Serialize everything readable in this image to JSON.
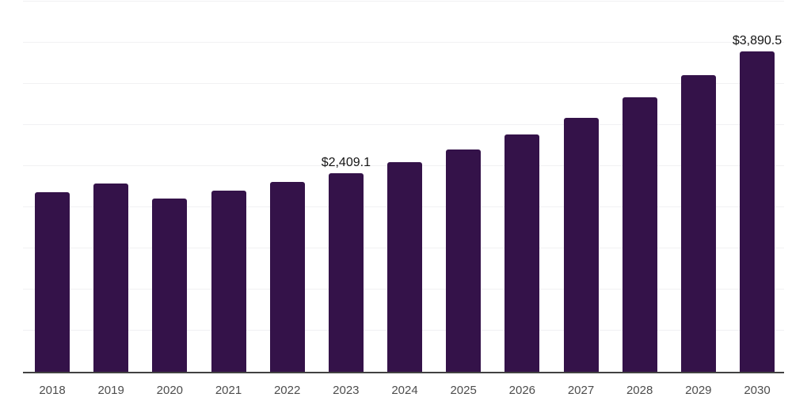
{
  "chart_data": {
    "type": "bar",
    "title": "",
    "xlabel": "",
    "ylabel": "",
    "categories": [
      "2018",
      "2019",
      "2020",
      "2021",
      "2022",
      "2023",
      "2024",
      "2025",
      "2026",
      "2027",
      "2028",
      "2029",
      "2030"
    ],
    "values": [
      2180,
      2290,
      2110,
      2200,
      2310,
      2409.1,
      2550,
      2700,
      2880,
      3090,
      3340,
      3610,
      3890.5
    ],
    "bar_labels": {
      "2023": "$2,409.1",
      "2030": "$3,890.5"
    },
    "ylim": [
      0,
      4500
    ],
    "gridline_interval": 500,
    "grid": "horizontal",
    "legend": "none",
    "colors": {
      "bar": "#341249",
      "gridline": "#f1f1f3",
      "axis_line": "#424242",
      "tick_label": "#4d4d4d",
      "value_label": "#141414"
    }
  }
}
